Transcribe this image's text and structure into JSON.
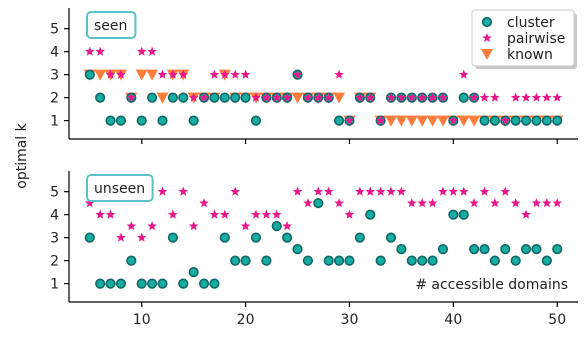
{
  "ylabel": "optimal k",
  "annotation": "# accessible domains",
  "colors": {
    "cluster": "#17aea1",
    "cluster_edge": "#106666",
    "pairwise": "#e8198b",
    "known": "#ff7d3b",
    "box_edge": "#5bc2c6"
  },
  "chart_data": [
    {
      "type": "scatter",
      "panel_label": "seen",
      "xlim": [
        3,
        52
      ],
      "ylim": [
        0.2,
        5.9
      ],
      "xticks": [
        10,
        20,
        30,
        40,
        50
      ],
      "xtick_labels": [
        "",
        "",
        "",
        "",
        ""
      ],
      "yticks": [
        1,
        2,
        3,
        4,
        5
      ],
      "legend": {
        "placement": "top-right",
        "entries": [
          "cluster",
          "pairwise",
          "known"
        ]
      },
      "series": [
        {
          "name": "known",
          "marker": "triangle-down",
          "x": [
            5,
            6,
            7,
            8,
            9,
            10,
            11,
            12,
            13,
            14,
            15,
            16,
            17,
            18,
            19,
            20,
            21,
            22,
            23,
            24,
            25,
            26,
            27,
            28,
            29,
            30,
            31,
            32,
            33,
            34,
            35,
            36,
            37,
            38,
            39,
            40,
            41,
            42,
            43,
            44,
            45,
            46,
            47,
            48,
            49,
            50
          ],
          "y": [
            3,
            3,
            3,
            3,
            2,
            3,
            3,
            2,
            3,
            3,
            2,
            2,
            2,
            3,
            2,
            2,
            2,
            2,
            2,
            2,
            2,
            2,
            2,
            2,
            2,
            1,
            2,
            2,
            1,
            1,
            1,
            1,
            1,
            1,
            1,
            1,
            1,
            1,
            1,
            1,
            1,
            1,
            1,
            1,
            1,
            1
          ]
        },
        {
          "name": "cluster",
          "marker": "circle",
          "x": [
            5,
            6,
            7,
            8,
            9,
            10,
            11,
            12,
            13,
            14,
            15,
            16,
            17,
            18,
            19,
            20,
            21,
            22,
            23,
            24,
            25,
            26,
            27,
            28,
            29,
            30,
            31,
            32,
            33,
            34,
            35,
            36,
            37,
            38,
            39,
            40,
            41,
            42,
            43,
            44,
            45,
            46,
            47,
            48,
            49,
            50
          ],
          "y": [
            3,
            2,
            1,
            1,
            2,
            1,
            2,
            1,
            2,
            2,
            1,
            2,
            2,
            2,
            2,
            2,
            1,
            2,
            2,
            2,
            3,
            2,
            2,
            2,
            1,
            1,
            2,
            2,
            1,
            2,
            2,
            2,
            2,
            2,
            2,
            1,
            2,
            2,
            1,
            1,
            1,
            1,
            1,
            1,
            1,
            1
          ]
        },
        {
          "name": "pairwise",
          "marker": "star",
          "x": [
            5,
            6,
            7,
            8,
            9,
            10,
            11,
            12,
            13,
            14,
            15,
            16,
            17,
            18,
            19,
            20,
            21,
            22,
            23,
            24,
            25,
            26,
            27,
            28,
            29,
            30,
            31,
            32,
            33,
            34,
            35,
            36,
            37,
            38,
            39,
            40,
            41,
            42,
            43,
            44,
            45,
            46,
            47,
            48,
            49,
            50
          ],
          "y": [
            4,
            4,
            3,
            3,
            2,
            4,
            4,
            3,
            3,
            3,
            2,
            2,
            3,
            3,
            3,
            3,
            2,
            2,
            2,
            2,
            3,
            2,
            2,
            2,
            3,
            1,
            2,
            2,
            1,
            2,
            2,
            2,
            2,
            2,
            2,
            1,
            3,
            2,
            2,
            2,
            1,
            2,
            2,
            2,
            2,
            2
          ]
        }
      ]
    },
    {
      "type": "scatter",
      "panel_label": "unseen",
      "xlim": [
        3,
        52
      ],
      "ylim": [
        0.2,
        5.9
      ],
      "xticks": [
        10,
        20,
        30,
        40,
        50
      ],
      "xtick_labels": [
        "10",
        "20",
        "30",
        "40",
        "50"
      ],
      "yticks": [
        1,
        2,
        3,
        4,
        5
      ],
      "series": [
        {
          "name": "cluster",
          "marker": "circle",
          "x": [
            5,
            6,
            7,
            8,
            9,
            10,
            11,
            12,
            13,
            14,
            15,
            16,
            17,
            18,
            19,
            20,
            21,
            22,
            23,
            24,
            25,
            26,
            27,
            28,
            29,
            30,
            31,
            32,
            33,
            34,
            35,
            36,
            37,
            38,
            39,
            40,
            41,
            42,
            43,
            44,
            45,
            46,
            47,
            48,
            49,
            50
          ],
          "y": [
            3,
            1,
            1,
            1,
            2,
            1,
            1,
            1,
            3,
            1,
            1.5,
            1,
            1,
            3,
            2,
            2,
            3,
            2,
            3.5,
            3,
            2.5,
            2,
            4.5,
            2,
            2,
            2,
            3,
            4,
            2,
            3,
            2.5,
            2,
            2,
            2,
            2.5,
            4,
            4,
            2.5,
            2.5,
            2,
            2.5,
            2,
            2.5,
            2.5,
            2,
            2.5
          ]
        },
        {
          "name": "pairwise",
          "marker": "star",
          "x": [
            5,
            6,
            7,
            8,
            9,
            10,
            11,
            12,
            13,
            14,
            15,
            16,
            17,
            18,
            19,
            20,
            21,
            22,
            23,
            24,
            25,
            26,
            27,
            28,
            29,
            30,
            31,
            32,
            33,
            34,
            35,
            36,
            37,
            38,
            39,
            40,
            41,
            42,
            43,
            44,
            45,
            46,
            47,
            48,
            49,
            50
          ],
          "y": [
            4.5,
            4,
            4,
            3,
            3.5,
            3,
            3.5,
            5,
            4,
            5,
            3.5,
            4.5,
            4,
            4,
            5,
            3.5,
            4,
            4,
            4,
            3.5,
            5,
            4.5,
            5,
            5,
            4.5,
            4,
            5,
            5,
            5,
            5,
            5,
            4.5,
            4.5,
            4.5,
            5,
            5,
            5,
            4.5,
            5,
            4.5,
            5,
            4.5,
            4,
            4.5,
            4.5,
            4.5
          ]
        }
      ]
    }
  ]
}
